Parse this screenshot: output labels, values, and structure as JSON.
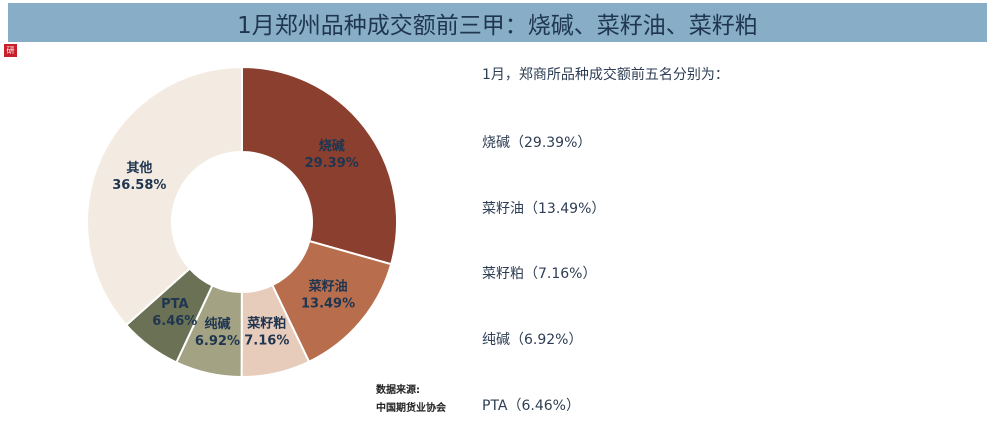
{
  "header": {
    "title": "1月郑州品种成交额前三甲：烧碱、菜籽油、菜籽粕"
  },
  "logo": {
    "label": "研",
    "color": "#c8202b"
  },
  "chart_data": {
    "type": "pie",
    "donut": true,
    "slices": [
      {
        "label": "烧碱",
        "value": 29.39,
        "value_label": "29.39%",
        "color": "#8b3f2e"
      },
      {
        "label": "菜籽油",
        "value": 13.49,
        "value_label": "13.49%",
        "color": "#b86e4c"
      },
      {
        "label": "菜籽粕",
        "value": 7.16,
        "value_label": "7.16%",
        "color": "#e7ccbb"
      },
      {
        "label": "纯碱",
        "value": 6.92,
        "value_label": "6.92%",
        "color": "#a3a283"
      },
      {
        "label": "PTA",
        "value": 6.46,
        "value_label": "6.46%",
        "color": "#6a7154"
      },
      {
        "label": "其他",
        "value": 36.58,
        "value_label": "36.58%",
        "color": "#f3ebe1"
      }
    ]
  },
  "summary": {
    "intro": "1月，郑商所品种成交额前五名分别为：",
    "items": [
      "烧碱（29.39%）",
      "菜籽油（13.49%）",
      "菜籽粕（7.16%）",
      "纯碱（6.92%）",
      "PTA（6.46%）"
    ]
  },
  "source": {
    "label": "数据来源:",
    "name": "中国期货业协会"
  }
}
